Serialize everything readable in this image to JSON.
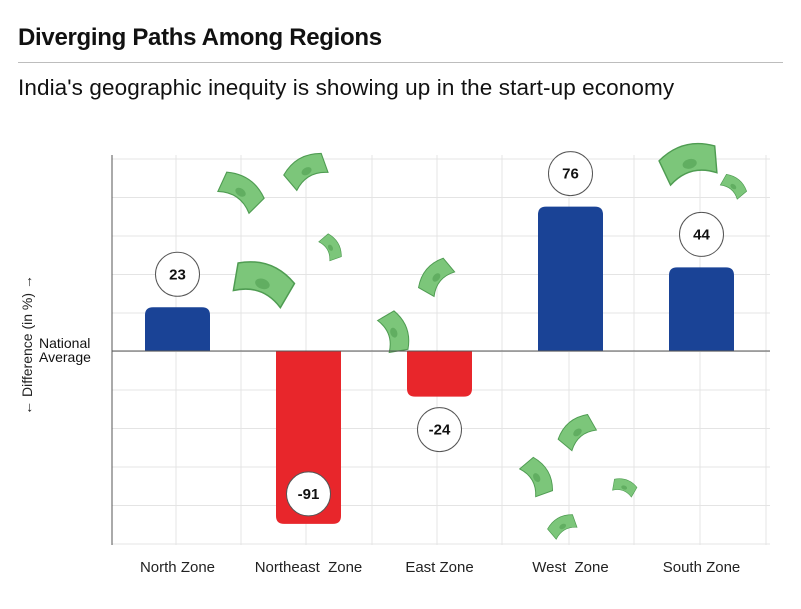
{
  "header": {
    "title": "Diverging Paths Among Regions",
    "subtitle": "India's geographic inequity is showing up in the start-up economy"
  },
  "axis": {
    "ylabel": "← Difference (in %) →",
    "baseline_label_line1": "National",
    "baseline_label_line2": "Average"
  },
  "colors": {
    "positive": "#1a4396",
    "negative": "#e8262b",
    "grid": "#e4e4e4",
    "axis": "#555555",
    "money": "#7cc67a"
  },
  "decorations": {
    "icon": "falling-money-icon"
  },
  "chart_data": {
    "type": "bar",
    "categories": [
      "North Zone",
      "Northeast  Zone",
      "East Zone",
      "West  Zone",
      "South Zone"
    ],
    "values": [
      23,
      -91,
      -24,
      76,
      44
    ],
    "data_labels": [
      "23",
      "-91",
      "-24",
      "76",
      "44"
    ],
    "title": "Diverging Paths Among Regions",
    "subtitle": "India's geographic inequity is showing up in the start-up economy",
    "xlabel": "",
    "ylabel": "Difference (in %)",
    "ylim": [
      -100,
      100
    ],
    "baseline": "National Average",
    "grid": true,
    "legend": "none"
  }
}
